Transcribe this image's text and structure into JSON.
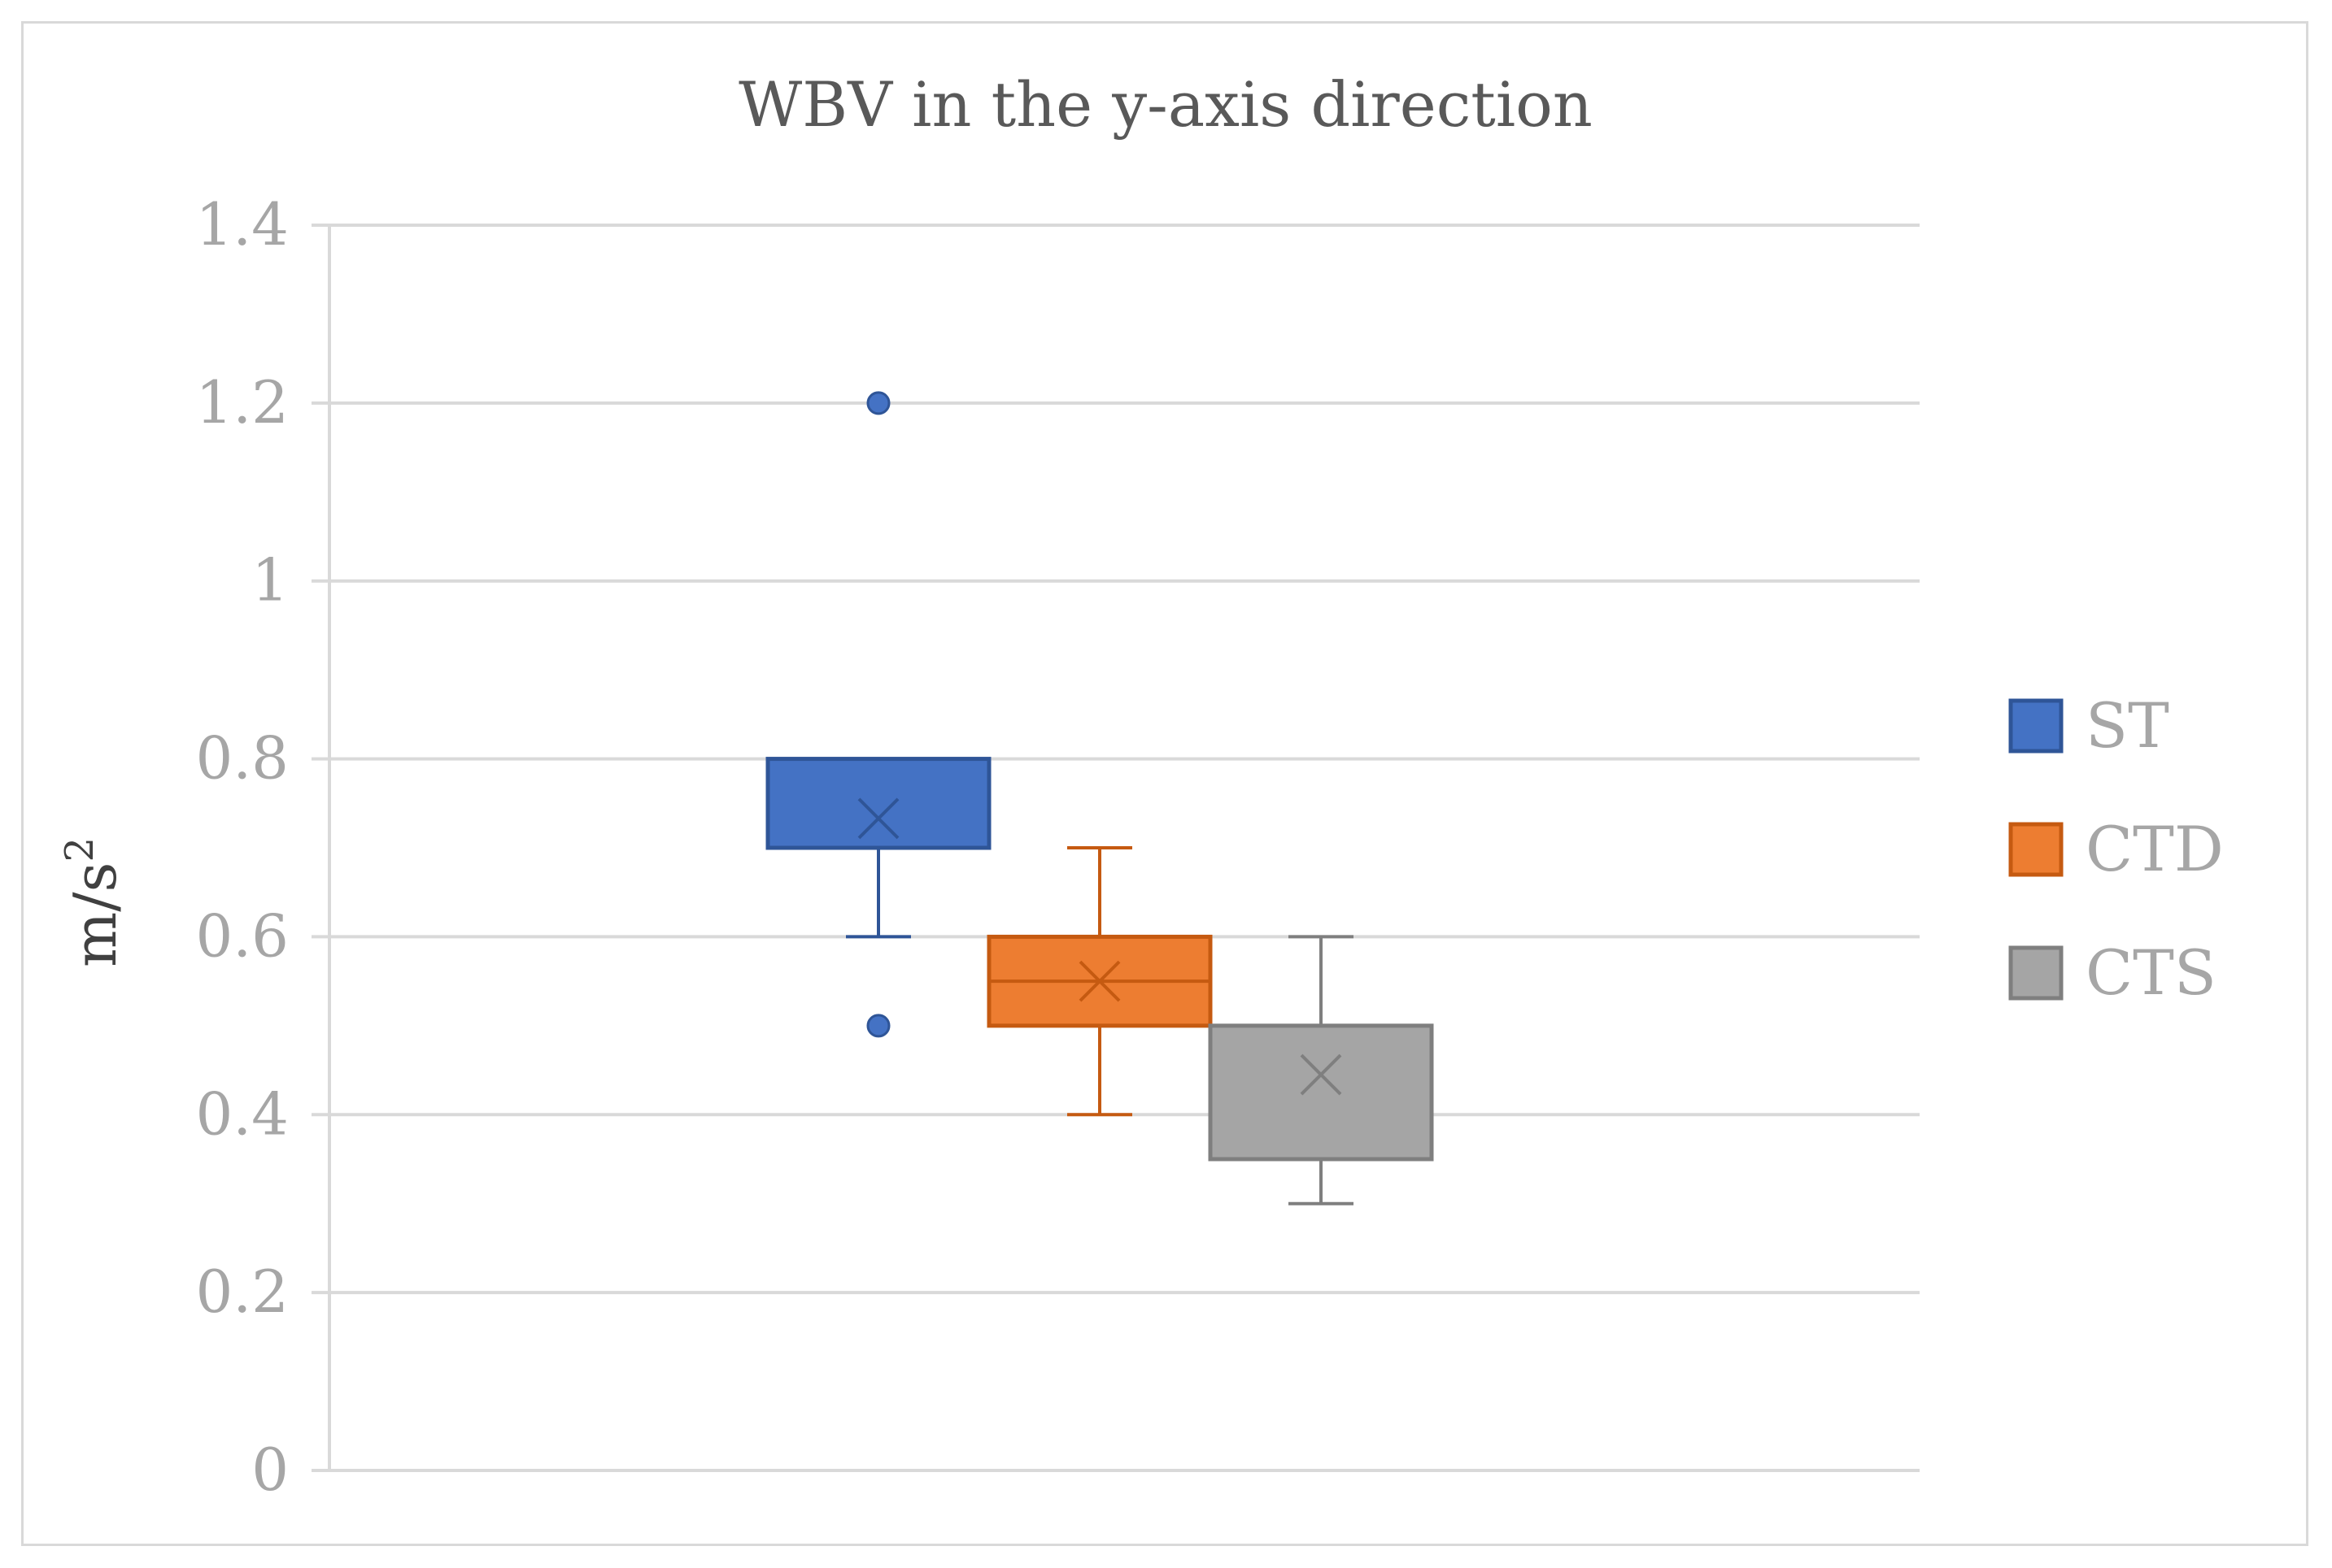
{
  "chart_data": {
    "type": "box",
    "title": "WBV in the y-axis direction",
    "ylabel": "m/s",
    "ylabel_superscript": "2",
    "ylim": [
      0,
      1.4
    ],
    "yticks": [
      "0",
      "0.2",
      "0.4",
      "0.6",
      "0.8",
      "1",
      "1.2",
      "1.4"
    ],
    "ytick_values": [
      0,
      0.2,
      0.4,
      0.6,
      0.8,
      1,
      1.2,
      1.4
    ],
    "grid": true,
    "legend_position": "right",
    "series": [
      {
        "name": "ST",
        "color": "#4472c4",
        "stroke": "#2f5597",
        "whisker_low": 0.6,
        "q1": 0.7,
        "median": 0.7,
        "q3": 0.8,
        "whisker_high": 0.8,
        "mean": 0.733,
        "outliers": [
          1.2,
          0.5
        ]
      },
      {
        "name": "CTD",
        "color": "#ed7d31",
        "stroke": "#c55a11",
        "whisker_low": 0.4,
        "q1": 0.5,
        "median": 0.55,
        "q3": 0.6,
        "whisker_high": 0.7,
        "mean": 0.55,
        "outliers": []
      },
      {
        "name": "CTS",
        "color": "#a5a5a5",
        "stroke": "#7f7f7f",
        "whisker_low": 0.3,
        "q1": 0.35,
        "median": 0.35,
        "q3": 0.5,
        "whisker_high": 0.6,
        "mean": 0.445,
        "outliers": []
      }
    ]
  }
}
